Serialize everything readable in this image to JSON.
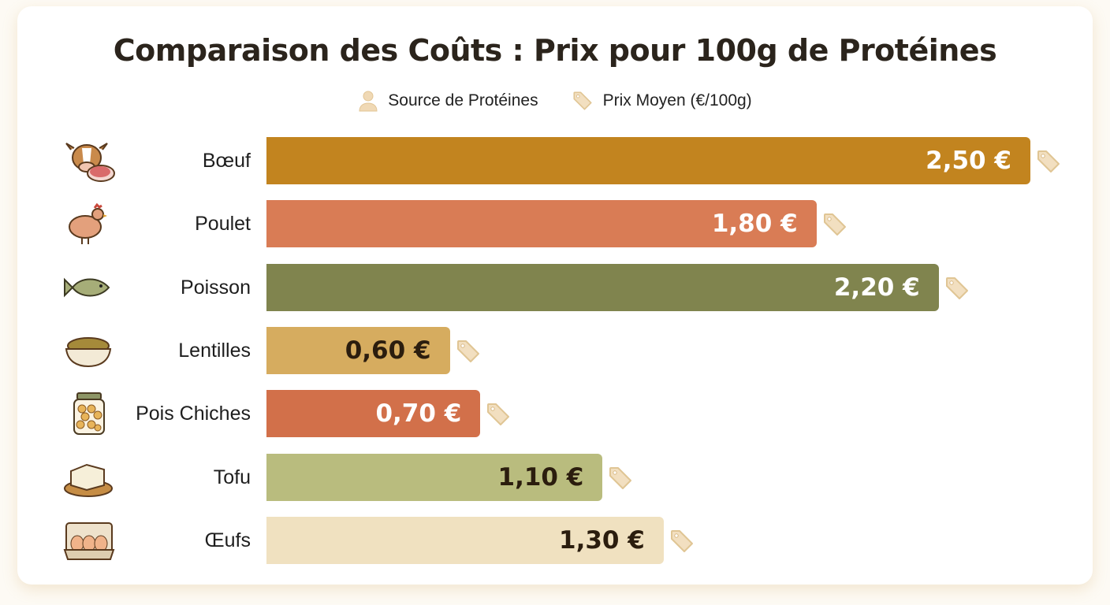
{
  "chart_data": {
    "type": "bar",
    "orientation": "horizontal",
    "title": "Comparaison des Coûts : Prix pour 100g de Protéines",
    "legend": [
      {
        "label": "Source de Protéines",
        "icon": "person-icon"
      },
      {
        "label": "Prix Moyen (€/100g)",
        "icon": "price-tag-icon"
      }
    ],
    "legend_position": "top",
    "categories": [
      "Bœuf",
      "Poulet",
      "Poisson",
      "Lentilles",
      "Pois Chiches",
      "Tofu",
      "Œufs"
    ],
    "values": [
      2.5,
      1.8,
      2.2,
      0.6,
      0.7,
      1.1,
      1.3
    ],
    "value_labels": [
      "2,50 €",
      "1,80 €",
      "2,20 €",
      "0,60 €",
      "0,70 €",
      "1,10 €",
      "1,30 €"
    ],
    "icons": [
      "cow-steak-icon",
      "chicken-icon",
      "fish-icon",
      "lentil-bowl-icon",
      "chickpea-jar-icon",
      "tofu-icon",
      "egg-carton-icon"
    ],
    "colors": [
      "#C2841F",
      "#D97C55",
      "#80844E",
      "#D6AC5F",
      "#D2704A",
      "#B9BC7E",
      "#F0E1C0"
    ],
    "label_colors": [
      "#ffffff",
      "#ffffff",
      "#ffffff",
      "#2b1d0e",
      "#ffffff",
      "#2b1d0e",
      "#2b1d0e"
    ],
    "xlim": [
      0,
      2.5
    ],
    "grid": false
  }
}
